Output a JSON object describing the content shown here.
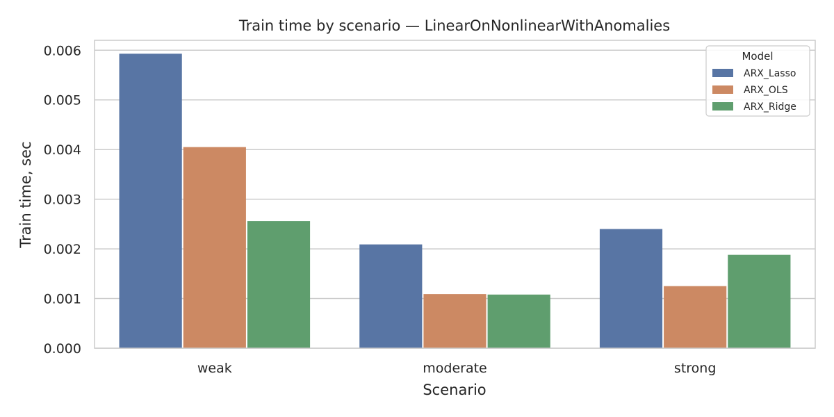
{
  "chart_data": {
    "type": "bar",
    "title": "Train time by scenario — LinearOnNonlinearWithAnomalies",
    "xlabel": "Scenario",
    "ylabel": "Train time, sec",
    "categories": [
      "weak",
      "moderate",
      "strong"
    ],
    "ylim": [
      0,
      0.0062
    ],
    "yticks": [
      "0.000",
      "0.001",
      "0.002",
      "0.003",
      "0.004",
      "0.005",
      "0.006"
    ],
    "grid": true,
    "legend": {
      "title": "Model",
      "placement": "top-right"
    },
    "series": [
      {
        "name": "ARX_Lasso",
        "color": "#5875a4",
        "values": [
          0.00593,
          0.00209,
          0.0024
        ]
      },
      {
        "name": "ARX_OLS",
        "color": "#cc8963",
        "values": [
          0.00405,
          0.00109,
          0.00125
        ]
      },
      {
        "name": "ARX_Ridge",
        "color": "#5f9e6e",
        "values": [
          0.00256,
          0.00108,
          0.00188
        ]
      }
    ]
  }
}
